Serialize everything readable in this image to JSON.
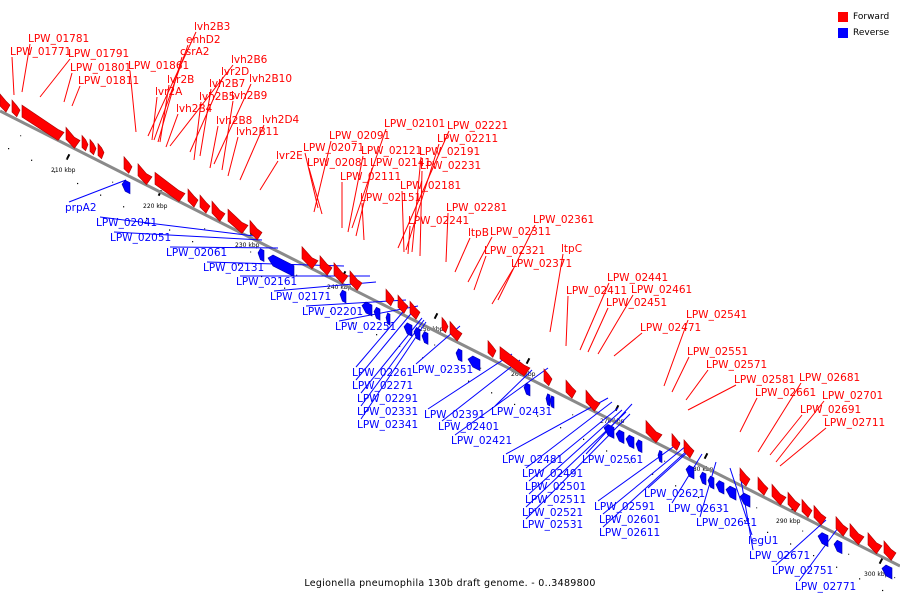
{
  "title": "Legionella pneumophila 130b draft genome. - 0..3489800",
  "legend": [
    {
      "label": "Forward",
      "color": "#ff0000"
    },
    {
      "label": "Reverse",
      "color": "#0000ff"
    }
  ],
  "colors": {
    "forward": "#ff0000",
    "reverse": "#0000ff",
    "backbone": "#808080",
    "ticks": "#000000"
  },
  "ticks": [
    "210 kbp",
    "220 kbp",
    "230 kbp",
    "240 kbp",
    "250 kbp",
    "260 kbp",
    "270 kbp",
    "280 kbp",
    "290 kbp",
    "300 kbp"
  ],
  "forward_labels": [
    "LPW_01781",
    "LPW_01771",
    "LPW_01791",
    "LPW_01801",
    "LPW_01811",
    "lvh2B3",
    "enhD2",
    "csrA2",
    "lvh2B6",
    "LPW_01861",
    "lvr2D",
    "lvr2B",
    "lvh2B7",
    "lvh2B10",
    "lvr2A",
    "lvh2B5",
    "lvh2B9",
    "lvh2B4",
    "lvh2B8",
    "lvh2D4",
    "lvh2B11",
    "lvr2E",
    "LPW_02101",
    "LPW_02221",
    "LPW_02091",
    "LPW_02211",
    "LPW_02071",
    "LPW_02121",
    "LPW_02191",
    "LPW_02081",
    "LPW_02141",
    "LPW_02231",
    "LPW_02111",
    "LPW_02181",
    "LPW_02151",
    "LPW_02281",
    "LPW_02241",
    "LPW_02361",
    "ltpB",
    "LPW_02311",
    "LPW_02321",
    "ltpC",
    "LPW_02371",
    "LPW_02441",
    "LPW_02411",
    "LPW_02461",
    "LPW_02451",
    "LPW_02541",
    "LPW_02471",
    "LPW_02551",
    "LPW_02571",
    "LPW_02581",
    "LPW_02681",
    "LPW_02661",
    "LPW_02701",
    "LPW_02691",
    "LPW_02711"
  ],
  "reverse_labels": [
    "prpA2",
    "LPW_02041",
    "LPW_02051",
    "LPW_02061",
    "LPW_02131",
    "LPW_02161",
    "LPW_02171",
    "LPW_02201",
    "LPW_02251",
    "LPW_02261",
    "LPW_02351",
    "LPW_02271",
    "LPW_02291",
    "LPW_02331",
    "LPW_02341",
    "LPW_02391",
    "LPW_02431",
    "LPW_02401",
    "LPW_02421",
    "LPW_02481",
    "LPW_02561",
    "LPW_02491",
    "LPW_02501",
    "LPW_02511",
    "LPW_02521",
    "LPW_02531",
    "LPW_02621",
    "LPW_02591",
    "LPW_02631",
    "LPW_02601",
    "LPW_02611",
    "LPW_02641",
    "legU1",
    "LPW_02671",
    "LPW_02751",
    "LPW_02771"
  ]
}
